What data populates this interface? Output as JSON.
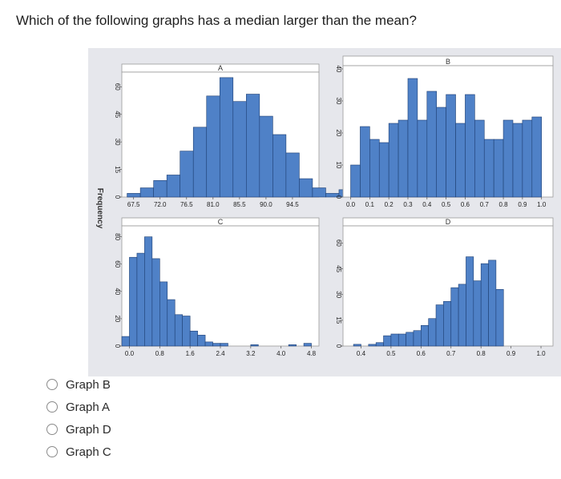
{
  "question": "Which of the following graphs has a median larger than the mean?",
  "choices": [
    {
      "label": "Graph B"
    },
    {
      "label": "Graph A"
    },
    {
      "label": "Graph D"
    },
    {
      "label": "Graph C"
    }
  ],
  "colors": {
    "bar_fill": "#4f81c7",
    "bar_stroke": "#1e3f73",
    "panel_bg": "#ffffff",
    "figure_bg": "#e6e7ec"
  },
  "chart_data": [
    {
      "type": "bar",
      "title": "A",
      "ylabel": "Frequency",
      "x_ticks": [
        "67.5",
        "72.0",
        "76.5",
        "81.0",
        "85.5",
        "90.0",
        "94.5"
      ],
      "y_ticks": [
        "0",
        "15",
        "30",
        "45",
        "60"
      ],
      "xlim": [
        65.5,
        99
      ],
      "ylim": [
        0,
        68
      ],
      "bin_start": 66.4,
      "bin_width": 2.25,
      "values": [
        2,
        5,
        9,
        12,
        25,
        38,
        55,
        65,
        52,
        56,
        44,
        34,
        24,
        10,
        5,
        2,
        4,
        1,
        1
      ]
    },
    {
      "type": "bar",
      "title": "B",
      "x_ticks": [
        "0.0",
        "0.1",
        "0.2",
        "0.3",
        "0.4",
        "0.5",
        "0.6",
        "0.7",
        "0.8",
        "0.9",
        "1.0"
      ],
      "y_ticks": [
        "0",
        "10",
        "20",
        "30",
        "40"
      ],
      "xlim": [
        -0.04,
        1.06
      ],
      "ylim": [
        0,
        41
      ],
      "bin_start": 0.0,
      "bin_width": 0.05,
      "values": [
        10,
        22,
        18,
        17,
        23,
        24,
        37,
        24,
        33,
        28,
        32,
        23,
        32,
        24,
        18,
        18,
        24,
        23,
        24,
        25
      ]
    },
    {
      "type": "bar",
      "title": "C",
      "ylabel": "Frequency",
      "x_ticks": [
        "0.0",
        "0.8",
        "1.6",
        "2.4",
        "3.2",
        "4.0",
        "4.8"
      ],
      "y_ticks": [
        "0",
        "20",
        "40",
        "60",
        "80"
      ],
      "xlim": [
        -0.2,
        5.0
      ],
      "ylim": [
        0,
        88
      ],
      "bin_start": -0.2,
      "bin_width": 0.2,
      "values": [
        7,
        65,
        68,
        80,
        64,
        47,
        34,
        23,
        22,
        11,
        8,
        3,
        2,
        2,
        0,
        0,
        0,
        1,
        0,
        0,
        0,
        0,
        1,
        0,
        2
      ]
    },
    {
      "type": "bar",
      "title": "D",
      "x_ticks": [
        "0.4",
        "0.5",
        "0.6",
        "0.7",
        "0.8",
        "0.9",
        "1.0"
      ],
      "y_ticks": [
        "0",
        "15",
        "30",
        "45",
        "60"
      ],
      "xlim": [
        0.34,
        1.04
      ],
      "ylim": [
        0,
        70
      ],
      "bin_start": 0.375,
      "bin_width": 0.025,
      "values": [
        1,
        0,
        1,
        2,
        6,
        7,
        7,
        8,
        9,
        12,
        16,
        24,
        26,
        34,
        36,
        52,
        38,
        48,
        50,
        33
      ]
    }
  ]
}
